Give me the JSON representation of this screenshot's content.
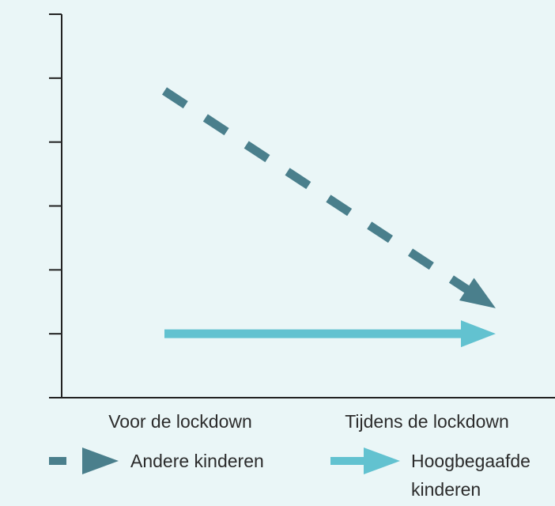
{
  "chart_data": {
    "type": "line",
    "categories": [
      "Voor de lockdown",
      "Tijdens de lockdown"
    ],
    "series": [
      {
        "name": "Andere kinderen",
        "color": "#4a7f8c",
        "dashed": true,
        "values": [
          4.8,
          1.4
        ]
      },
      {
        "name": "Hoogbegaafde kinderen",
        "color": "#62c2d0",
        "dashed": false,
        "values": [
          1,
          1
        ]
      }
    ],
    "ylim": [
      0,
      6
    ],
    "yticks": [
      1,
      2,
      3,
      4,
      5,
      6
    ]
  }
}
